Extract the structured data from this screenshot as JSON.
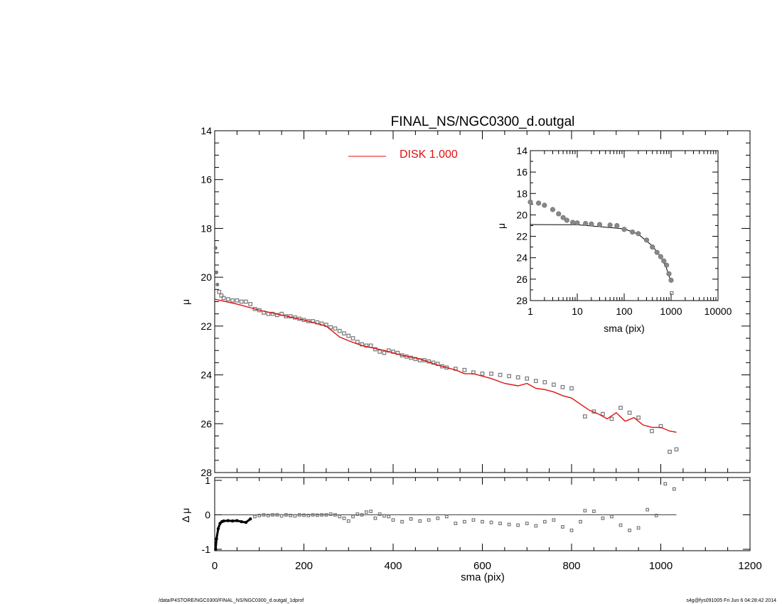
{
  "title": "FINAL_NS/NGC0300_d.outgal",
  "footer": {
    "left": "/data/P4STORE/NGC0300/FINAL_NS/NGC0300_d.outgal_1dprof",
    "right": "s4g@fys091005  Fri Jun  6 04:28:42 2014"
  },
  "colors": {
    "model": "#dd1111",
    "points": "#777777",
    "axes": "#000000"
  },
  "chart_data": [
    {
      "id": "main-profile",
      "type": "scatter",
      "xlabel": "",
      "ylabel": "μ",
      "xlim": [
        0,
        1200
      ],
      "ylim": [
        28,
        14
      ],
      "y_ticks": [
        14,
        16,
        18,
        20,
        22,
        24,
        26,
        28
      ],
      "legend": {
        "label": "DISK  1.000",
        "placement": "top-center"
      },
      "series": [
        {
          "name": "DISK  1.000",
          "type": "line",
          "x": [
            0,
            50,
            100,
            150,
            200,
            250,
            280,
            300,
            330,
            380,
            420,
            460,
            500,
            540,
            560,
            580,
            620,
            650,
            680,
            700,
            720,
            740,
            760,
            780,
            800,
            820,
            840,
            860,
            880,
            900,
            920,
            940,
            960,
            980,
            1000,
            1020,
            1035
          ],
          "y": [
            20.9,
            21.1,
            21.35,
            21.55,
            21.75,
            22.0,
            22.45,
            22.6,
            22.8,
            23.0,
            23.2,
            23.35,
            23.6,
            23.8,
            23.95,
            23.95,
            24.15,
            24.35,
            24.45,
            24.35,
            24.55,
            24.6,
            24.7,
            24.85,
            24.95,
            25.2,
            25.45,
            25.6,
            25.8,
            25.55,
            25.9,
            25.75,
            26.05,
            26.15,
            26.15,
            26.3,
            26.35
          ]
        },
        {
          "name": "",
          "type": "scatter",
          "x": [
            2,
            4,
            6,
            10,
            15,
            20,
            30,
            40,
            50,
            60,
            70,
            80,
            90,
            100,
            110,
            120,
            130,
            140,
            150,
            160,
            170,
            180,
            190,
            200,
            210,
            220,
            230,
            240,
            250,
            260,
            270,
            280,
            290,
            300,
            310,
            320,
            330,
            340,
            350,
            360,
            370,
            380,
            390,
            400,
            410,
            420,
            430,
            440,
            450,
            460,
            470,
            480,
            490,
            500,
            510,
            520,
            540,
            560,
            580,
            600,
            620,
            640,
            660,
            680,
            700,
            720,
            740,
            760,
            780,
            800,
            830,
            850,
            870,
            890,
            910,
            930,
            950,
            980,
            1000,
            1020,
            1035
          ],
          "y": [
            18.8,
            19.8,
            20.3,
            20.6,
            20.75,
            20.85,
            20.9,
            20.95,
            20.95,
            21.0,
            21.0,
            21.1,
            21.3,
            21.35,
            21.45,
            21.5,
            21.5,
            21.55,
            21.5,
            21.6,
            21.6,
            21.65,
            21.7,
            21.75,
            21.8,
            21.8,
            21.85,
            21.9,
            21.95,
            22.05,
            22.1,
            22.2,
            22.3,
            22.4,
            22.5,
            22.65,
            22.75,
            22.8,
            22.8,
            22.95,
            23.05,
            23.1,
            23.0,
            23.05,
            23.1,
            23.2,
            23.25,
            23.3,
            23.35,
            23.4,
            23.4,
            23.45,
            23.5,
            23.55,
            23.65,
            23.7,
            23.75,
            23.8,
            23.9,
            23.95,
            23.95,
            24.0,
            24.05,
            24.1,
            24.15,
            24.25,
            24.3,
            24.4,
            24.5,
            24.55,
            25.7,
            25.5,
            25.6,
            25.8,
            25.35,
            25.55,
            25.75,
            26.3,
            26.1,
            27.15,
            27.05
          ]
        }
      ]
    },
    {
      "id": "inset-log-profile",
      "type": "scatter",
      "xlabel": "sma (pix)",
      "ylabel": "μ",
      "xscale": "log",
      "xlim": [
        1,
        10000
      ],
      "ylim": [
        28,
        14
      ],
      "x_ticks": [
        1,
        10,
        100,
        1000,
        10000
      ],
      "y_ticks": [
        14,
        16,
        18,
        20,
        22,
        24,
        26,
        28
      ],
      "series": [
        {
          "name": "",
          "type": "line",
          "x": [
            1,
            10,
            100,
            200,
            400,
            600,
            800,
            1000
          ],
          "y": [
            20.9,
            20.92,
            21.3,
            21.8,
            22.9,
            23.9,
            25.0,
            26.3
          ]
        },
        {
          "name": "",
          "type": "scatter",
          "x": [
            1,
            1.5,
            2,
            3,
            4,
            5,
            6,
            8,
            10,
            15,
            20,
            30,
            50,
            70,
            100,
            150,
            200,
            300,
            400,
            500,
            600,
            700,
            800,
            900,
            1000
          ],
          "y": [
            18.8,
            18.9,
            19.1,
            19.5,
            19.9,
            20.25,
            20.5,
            20.7,
            20.75,
            20.8,
            20.85,
            20.9,
            20.95,
            21.0,
            21.35,
            21.6,
            21.75,
            22.35,
            23.0,
            23.5,
            23.9,
            24.3,
            24.7,
            25.5,
            26.1
          ]
        }
      ]
    },
    {
      "id": "residuals",
      "type": "scatter",
      "xlabel": "sma (pix)",
      "ylabel": "Δ μ",
      "xlim": [
        0,
        1200
      ],
      "ylim": [
        -1,
        1
      ],
      "x_ticks": [
        0,
        200,
        400,
        600,
        800,
        1000,
        1200
      ],
      "y_ticks": [
        -1,
        0,
        1
      ],
      "series": [
        {
          "name": "",
          "type": "scatter",
          "x": [
            2,
            4,
            8,
            12,
            16,
            20,
            30,
            40,
            50,
            60,
            70,
            80,
            90,
            100,
            110,
            120,
            130,
            140,
            150,
            160,
            170,
            180,
            190,
            200,
            210,
            220,
            230,
            240,
            250,
            260,
            270,
            280,
            290,
            300,
            310,
            320,
            330,
            340,
            350,
            360,
            370,
            380,
            390,
            400,
            420,
            440,
            460,
            480,
            500,
            520,
            540,
            560,
            580,
            600,
            620,
            640,
            660,
            680,
            700,
            720,
            740,
            760,
            780,
            800,
            820,
            830,
            850,
            870,
            890,
            910,
            930,
            950,
            970,
            990,
            1010,
            1030
          ],
          "y": [
            -1.0,
            -0.7,
            -0.4,
            -0.25,
            -0.2,
            -0.18,
            -0.17,
            -0.18,
            -0.17,
            -0.2,
            -0.22,
            -0.12,
            -0.05,
            -0.02,
            0.0,
            -0.02,
            0.0,
            0.0,
            -0.03,
            0.0,
            -0.02,
            -0.03,
            0.0,
            -0.01,
            -0.02,
            0.0,
            -0.01,
            0.0,
            0.0,
            0.02,
            0.0,
            -0.05,
            -0.1,
            -0.18,
            -0.05,
            0.02,
            0.0,
            0.08,
            0.1,
            -0.1,
            0.02,
            -0.03,
            -0.05,
            -0.15,
            -0.2,
            -0.12,
            -0.18,
            -0.15,
            -0.1,
            -0.05,
            -0.25,
            -0.2,
            -0.15,
            -0.2,
            -0.22,
            -0.25,
            -0.28,
            -0.3,
            -0.25,
            -0.32,
            -0.2,
            -0.15,
            -0.35,
            -0.45,
            -0.2,
            0.12,
            0.1,
            -0.1,
            -0.05,
            -0.3,
            -0.45,
            -0.38,
            0.15,
            -0.02,
            0.9,
            0.75
          ]
        }
      ]
    }
  ]
}
